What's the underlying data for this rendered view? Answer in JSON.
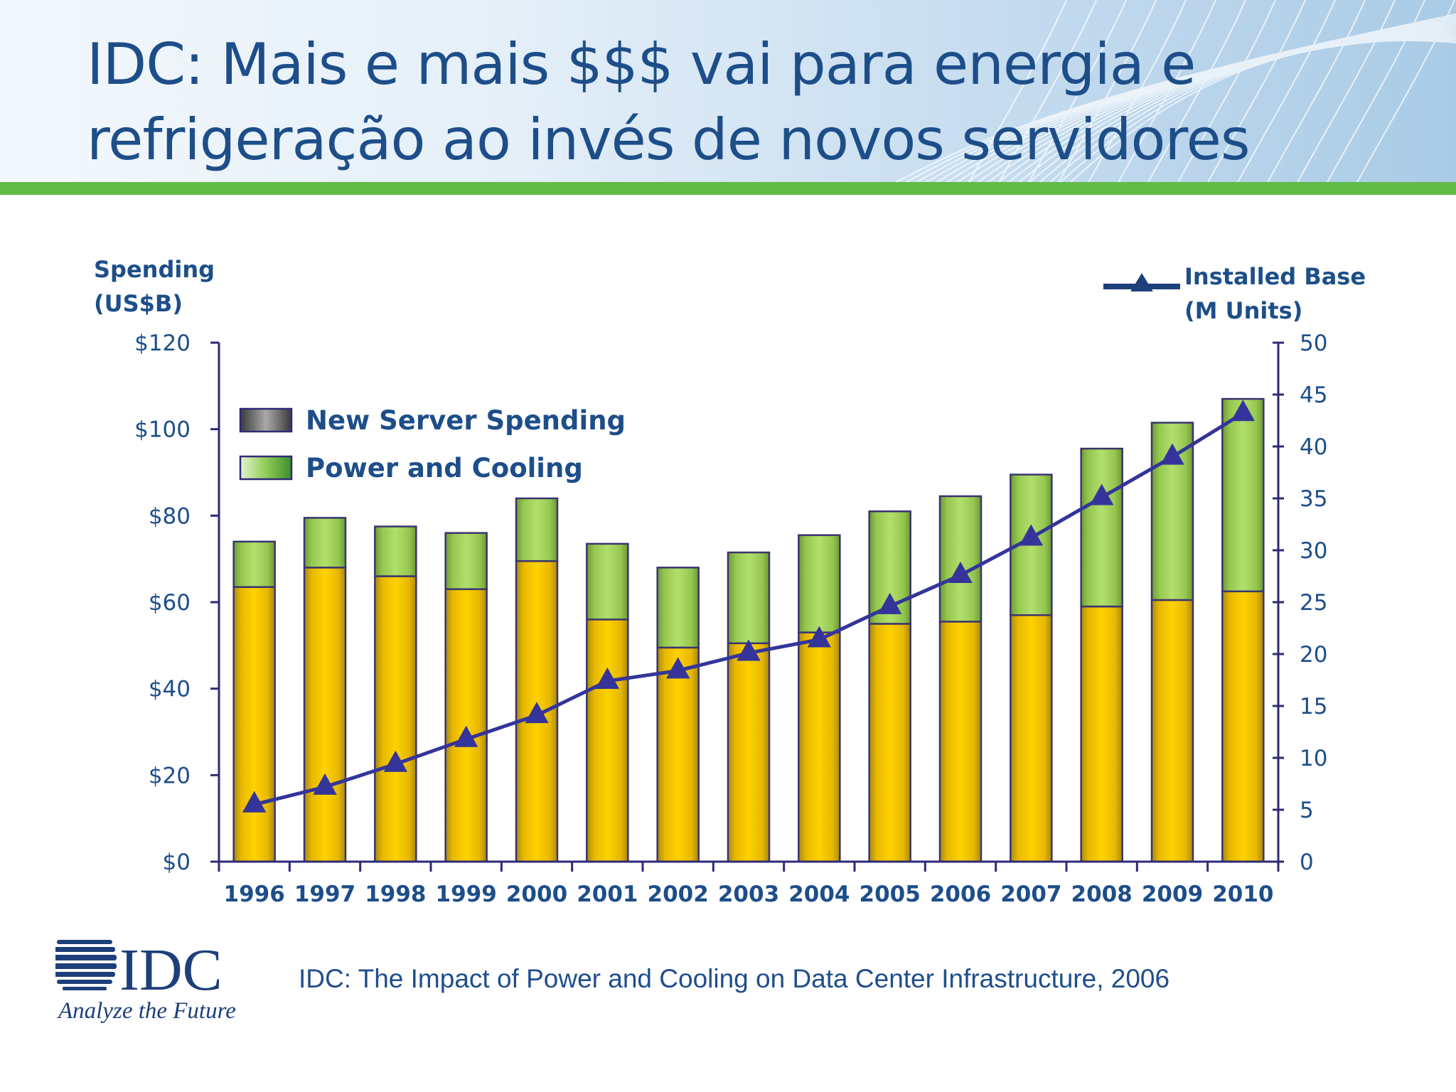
{
  "slide": {
    "title_lines": [
      "IDC: Mais e mais $$$ vai para energia e",
      "refrigeração ao invés de novos servidores"
    ],
    "source": "IDC: The Impact of Power and Cooling on Data Center Infrastructure, 2006",
    "logo": {
      "wordmark": "IDC",
      "tagline": "Analyze the Future"
    },
    "colors": {
      "title": "#1d4e89",
      "accent_green": "#62bb46",
      "server_bar": "#f2c200",
      "cooling_bar": "#a2d460",
      "line": "#34349a"
    }
  },
  "chart_data": {
    "type": "bar",
    "stacked": true,
    "categories": [
      "1996",
      "1997",
      "1998",
      "1999",
      "2000",
      "2001",
      "2002",
      "2003",
      "2004",
      "2005",
      "2006",
      "2007",
      "2008",
      "2009",
      "2010"
    ],
    "series": [
      {
        "name": "New Server Spending",
        "axis": "left",
        "values": [
          63.5,
          68,
          66,
          63,
          69.5,
          56,
          49.5,
          50.5,
          53,
          55,
          55.5,
          57,
          59,
          60.5,
          62.5
        ]
      },
      {
        "name": "Power and Cooling",
        "axis": "left",
        "values": [
          10.5,
          11.5,
          11.5,
          13,
          14.5,
          17.5,
          18.5,
          21,
          22.5,
          26,
          29,
          32.5,
          36.5,
          41,
          44.5
        ]
      },
      {
        "name": "Installed Base (M Units)",
        "axis": "right",
        "type": "line",
        "marker": "triangle",
        "values": [
          5.5,
          7.2,
          9.4,
          11.8,
          14.1,
          17.4,
          18.4,
          20.1,
          21.4,
          24.6,
          27.6,
          31.2,
          35.1,
          39.0,
          43.2
        ]
      }
    ],
    "left_axis": {
      "title": [
        "Spending",
        "(US$B)"
      ],
      "ylim": [
        0,
        120
      ],
      "ticks": [
        0,
        20,
        40,
        60,
        80,
        100,
        120
      ],
      "tick_labels": [
        "$0",
        "$20",
        "$40",
        "$60",
        "$80",
        "$100",
        "$120"
      ]
    },
    "right_axis": {
      "title": [
        "Installed Base",
        "(M Units)"
      ],
      "ylim": [
        0,
        50
      ],
      "ticks": [
        0,
        5,
        10,
        15,
        20,
        25,
        30,
        35,
        40,
        45,
        50
      ],
      "tick_labels": [
        "0",
        "5",
        "10",
        "15",
        "20",
        "25",
        "30",
        "35",
        "40",
        "45",
        "50"
      ]
    },
    "legend": {
      "placement": "top-left inside plot",
      "entries": [
        "New Server Spending",
        "Power and Cooling"
      ]
    },
    "grid": false
  }
}
